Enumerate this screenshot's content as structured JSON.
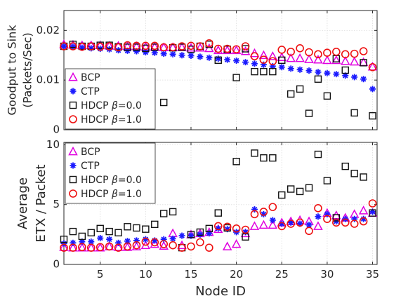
{
  "chart_data": [
    {
      "type": "scatter",
      "title": "",
      "xlabel": "",
      "ylabel_lines": [
        "Goodput to Sink",
        "(Packets/Sec)"
      ],
      "xlim": [
        1,
        35.5
      ],
      "ylim": [
        0,
        0.024
      ],
      "yticks": [
        0,
        0.01,
        0.02
      ],
      "ytick_labels": [
        "0",
        "0.01",
        "0.02"
      ],
      "xticks": [
        5,
        10,
        15,
        20,
        25,
        30,
        35
      ],
      "grid": true,
      "legend_position": "bottom-left",
      "series": [
        {
          "name": "BCP",
          "marker": "triangle",
          "color": "#e000e0",
          "x": [
            1,
            2,
            3,
            4,
            5,
            6,
            7,
            8,
            9,
            10,
            11,
            12,
            13,
            14,
            15,
            16,
            17,
            18,
            19,
            20,
            21,
            22,
            23,
            24,
            25,
            26,
            27,
            28,
            29,
            30,
            31,
            32,
            33,
            34,
            35
          ],
          "y": [
            0.0172,
            0.0171,
            0.017,
            0.017,
            0.017,
            0.0169,
            0.0169,
            0.0168,
            0.0168,
            0.0167,
            0.0167,
            0.0166,
            0.0166,
            0.0166,
            0.0165,
            0.0165,
            0.0164,
            0.016,
            0.016,
            0.016,
            0.0158,
            0.0154,
            0.015,
            0.0148,
            0.0146,
            0.0144,
            0.0144,
            0.0142,
            0.0141,
            0.014,
            0.014,
            0.0138,
            0.0137,
            0.0136,
            0.0127
          ]
        },
        {
          "name": "CTP",
          "marker": "asterisk",
          "color": "#1a1aff",
          "x": [
            1,
            2,
            3,
            4,
            5,
            6,
            7,
            8,
            9,
            10,
            11,
            12,
            13,
            14,
            15,
            16,
            17,
            18,
            19,
            20,
            21,
            22,
            23,
            24,
            25,
            26,
            27,
            28,
            29,
            30,
            31,
            32,
            33,
            34,
            35
          ],
          "y": [
            0.0168,
            0.0167,
            0.0165,
            0.0164,
            0.0163,
            0.0162,
            0.016,
            0.0159,
            0.0158,
            0.0156,
            0.0155,
            0.0153,
            0.0152,
            0.015,
            0.0149,
            0.0147,
            0.0145,
            0.0143,
            0.0141,
            0.0139,
            0.0136,
            0.0133,
            0.0131,
            0.0128,
            0.0126,
            0.0123,
            0.0121,
            0.0119,
            0.0116,
            0.0114,
            0.0112,
            0.0109,
            0.0106,
            0.0102,
            0.0082
          ]
        },
        {
          "name": "HDCP β=0.0",
          "marker": "square",
          "color": "#111111",
          "x": [
            1,
            2,
            3,
            4,
            5,
            6,
            7,
            8,
            9,
            10,
            11,
            12,
            13,
            14,
            15,
            16,
            17,
            18,
            19,
            20,
            21,
            22,
            23,
            24,
            25,
            26,
            27,
            28,
            29,
            30,
            31,
            32,
            33,
            34,
            35
          ],
          "y": [
            0.0168,
            0.0172,
            0.0168,
            0.0168,
            0.017,
            0.017,
            0.0167,
            0.0166,
            0.0166,
            0.0164,
            0.0166,
            0.0055,
            0.0165,
            0.0166,
            0.0162,
            0.0168,
            0.0172,
            0.014,
            0.0162,
            0.0105,
            0.0163,
            0.0117,
            0.0117,
            0.0117,
            0.014,
            0.0072,
            0.0082,
            0.0033,
            0.0102,
            0.0068,
            0.0143,
            0.012,
            0.0034,
            0.0135,
            0.0028
          ]
        },
        {
          "name": "HDCP β=1.0",
          "marker": "circle",
          "color": "#ee1111",
          "x": [
            1,
            2,
            3,
            4,
            5,
            6,
            7,
            8,
            9,
            10,
            11,
            12,
            13,
            14,
            15,
            16,
            17,
            18,
            19,
            20,
            21,
            22,
            23,
            24,
            25,
            26,
            27,
            28,
            29,
            30,
            31,
            32,
            33,
            34,
            35
          ],
          "y": [
            0.0168,
            0.0168,
            0.0167,
            0.0168,
            0.0167,
            0.0168,
            0.0166,
            0.017,
            0.0169,
            0.0169,
            0.0169,
            0.0166,
            0.0166,
            0.0168,
            0.0169,
            0.0168,
            0.0174,
            0.0163,
            0.0163,
            0.0162,
            0.0168,
            0.0148,
            0.0141,
            0.0138,
            0.0161,
            0.0157,
            0.0164,
            0.0156,
            0.0152,
            0.0155,
            0.0157,
            0.0152,
            0.0153,
            0.0158,
            0.0126
          ]
        }
      ]
    },
    {
      "type": "scatter",
      "title": "",
      "xlabel": "Node ID",
      "ylabel_lines": [
        "Average",
        "ETX / Packet"
      ],
      "xlim": [
        1,
        35.5
      ],
      "ylim": [
        0,
        10.2
      ],
      "yticks": [
        0,
        5,
        10
      ],
      "ytick_labels": [
        "0",
        "5",
        "10"
      ],
      "xticks": [
        5,
        10,
        15,
        20,
        25,
        30,
        35
      ],
      "xtick_labels": [
        "5",
        "10",
        "15",
        "20",
        "25",
        "30",
        "35"
      ],
      "grid": true,
      "legend_position": "top-left",
      "series": [
        {
          "name": "BCP",
          "marker": "triangle",
          "color": "#e000e0",
          "x": [
            1,
            2,
            3,
            4,
            5,
            6,
            7,
            8,
            9,
            10,
            11,
            12,
            13,
            14,
            15,
            16,
            17,
            18,
            19,
            20,
            21,
            22,
            23,
            24,
            25,
            26,
            27,
            28,
            29,
            30,
            31,
            32,
            33,
            34,
            35
          ],
          "y": [
            1.45,
            1.4,
            1.4,
            1.4,
            1.4,
            1.5,
            1.45,
            1.45,
            1.5,
            1.6,
            1.7,
            1.55,
            2.6,
            1.6,
            2.5,
            2.6,
            2.7,
            2.95,
            1.5,
            1.7,
            2.6,
            3.2,
            3.3,
            3.3,
            3.5,
            3.6,
            3.7,
            3.6,
            3.2,
            4.3,
            4.1,
            3.9,
            4.2,
            4.5,
            4.3
          ]
        },
        {
          "name": "CTP",
          "marker": "asterisk",
          "color": "#1a1aff",
          "x": [
            1,
            2,
            3,
            4,
            5,
            6,
            7,
            8,
            9,
            10,
            11,
            12,
            13,
            14,
            15,
            16,
            17,
            18,
            19,
            20,
            21,
            22,
            23,
            24,
            25,
            26,
            27,
            28,
            29,
            30,
            31,
            32,
            33,
            34,
            35
          ],
          "y": [
            1.75,
            1.8,
            1.9,
            1.9,
            2.2,
            2.1,
            1.8,
            1.95,
            2.0,
            2.1,
            2.0,
            2.1,
            2.15,
            2.4,
            2.4,
            2.5,
            2.6,
            3.0,
            2.95,
            2.7,
            2.7,
            4.6,
            4.2,
            3.7,
            3.4,
            3.5,
            3.4,
            3.3,
            4.0,
            4.2,
            3.6,
            3.8,
            3.8,
            3.8,
            4.4
          ]
        },
        {
          "name": "HDCP β=0.0",
          "marker": "square",
          "color": "#111111",
          "x": [
            1,
            2,
            3,
            4,
            5,
            6,
            7,
            8,
            9,
            10,
            11,
            12,
            13,
            14,
            15,
            16,
            17,
            18,
            19,
            20,
            21,
            22,
            23,
            24,
            25,
            26,
            27,
            28,
            29,
            30,
            31,
            32,
            33,
            34,
            35
          ],
          "y": [
            2.1,
            2.75,
            2.35,
            2.65,
            3.0,
            2.75,
            2.65,
            3.15,
            3.05,
            2.95,
            3.35,
            4.25,
            4.4,
            1.4,
            2.5,
            2.7,
            3.0,
            4.3,
            3.05,
            8.6,
            2.3,
            9.3,
            8.9,
            8.9,
            5.8,
            6.3,
            6.1,
            6.4,
            9.2,
            7.0,
            3.9,
            8.2,
            7.6,
            7.3,
            4.3
          ]
        },
        {
          "name": "HDCP β=1.0",
          "marker": "circle",
          "color": "#ee1111",
          "x": [
            1,
            2,
            3,
            4,
            5,
            6,
            7,
            8,
            9,
            10,
            11,
            12,
            13,
            14,
            15,
            16,
            17,
            18,
            19,
            20,
            21,
            22,
            23,
            24,
            25,
            26,
            27,
            28,
            29,
            30,
            31,
            32,
            33,
            34,
            35
          ],
          "y": [
            1.4,
            1.4,
            1.45,
            1.4,
            1.45,
            1.5,
            1.4,
            1.5,
            1.6,
            1.9,
            1.85,
            1.7,
            1.6,
            1.4,
            1.5,
            1.85,
            1.4,
            3.2,
            3.15,
            3.0,
            2.9,
            4.2,
            4.4,
            4.8,
            3.2,
            3.4,
            3.5,
            2.8,
            4.7,
            3.8,
            3.5,
            3.5,
            3.4,
            3.6,
            5.1
          ]
        }
      ]
    }
  ]
}
